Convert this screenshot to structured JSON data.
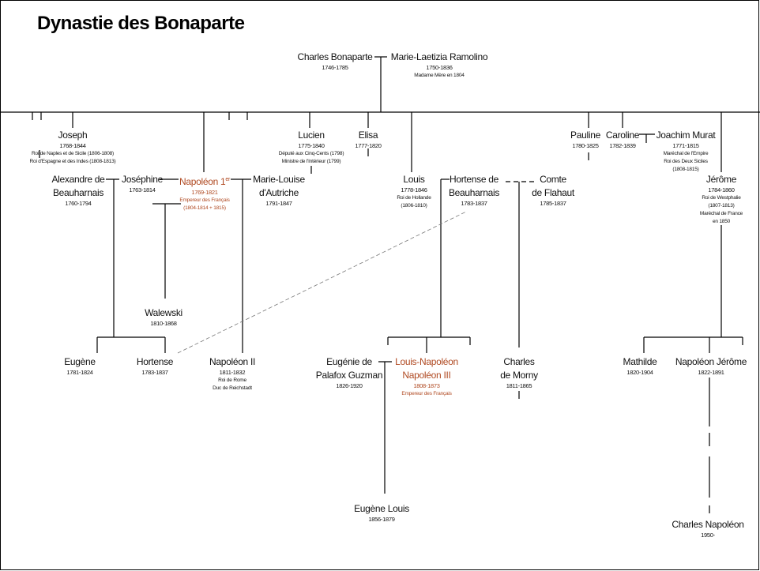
{
  "title": "Dynastie des Bonaparte",
  "highlight_color": "#b04a22",
  "people": {
    "charles": {
      "name": "Charles Bonaparte",
      "dates": "1746-1785"
    },
    "laetizia": {
      "name": "Marie-Laetizia Ramolino",
      "dates": "1750-1836",
      "notes": [
        "Madame Mère en 1804"
      ]
    },
    "joseph": {
      "name": "Joseph",
      "dates": "1768-1844",
      "notes": [
        "Roi de Naples et de Sicile (1806-1808)",
        "Roi d'Espagne et des Indes (1808-1813)"
      ]
    },
    "lucien": {
      "name": "Lucien",
      "dates": "1775-1840",
      "notes": [
        "Député aux Cinq-Cents (1798)",
        "Ministre de l'Intérieur (1799)"
      ]
    },
    "elisa": {
      "name": "Elisa",
      "dates": "1777-1820"
    },
    "pauline": {
      "name": "Pauline",
      "dates": "1780-1825"
    },
    "caroline": {
      "name": "Caroline",
      "dates": "1782-1839"
    },
    "murat": {
      "name": "Joachim Murat",
      "dates": "1771-1815",
      "notes": [
        "Maréchal de l'Empire",
        "Roi des Deux Siciles",
        "(1808-1815)"
      ]
    },
    "alexandre": {
      "name_lines": [
        "Alexandre de",
        "Beauharnais"
      ],
      "dates": "1760-1794"
    },
    "josephine": {
      "name": "Joséphine",
      "dates": "1763-1814"
    },
    "napoleon1": {
      "name": "Napoléon 1",
      "sup": "er",
      "dates": "1769-1821",
      "notes": [
        "Empereur des Français",
        "(1804-1814 + 1815)"
      ]
    },
    "marielouise": {
      "name_lines": [
        "Marie-Louise",
        "d'Autriche"
      ],
      "dates": "1791-1847"
    },
    "louis": {
      "name": "Louis",
      "dates": "1778-1846",
      "notes": [
        "Roi de Hollande",
        "(1806-1810)"
      ]
    },
    "hortense_b": {
      "name_lines": [
        "Hortense de",
        "Beauharnais"
      ],
      "dates": "1783-1837"
    },
    "flahaut": {
      "name_lines": [
        "Comte",
        "de Flahaut"
      ],
      "dates": "1785-1837"
    },
    "jerome": {
      "name": "Jérôme",
      "dates": "1784-1860",
      "notes": [
        "Roi de Westphalie",
        "(1807-1813)",
        "Maréchal de France",
        "en 1850"
      ]
    },
    "walewski": {
      "name": "Walewski",
      "dates": "1810-1868"
    },
    "eugene": {
      "name": "Eugène",
      "dates": "1781-1824"
    },
    "hortense": {
      "name": "Hortense",
      "dates": "1783-1837"
    },
    "napoleon2": {
      "name": "Napoléon II",
      "dates": "1811-1832",
      "notes": [
        "Roi de Rome",
        "Duc de Reichstadt"
      ]
    },
    "eugenie": {
      "name_lines": [
        "Eugénie de",
        "Palafox Guzman"
      ],
      "dates": "1826-1920"
    },
    "napoleon3": {
      "name_lines": [
        "Louis-Napoléon",
        "Napoléon III"
      ],
      "dates": "1808-1873",
      "notes": [
        "Empereur des Français"
      ]
    },
    "morny": {
      "name_lines": [
        "Charles",
        "de Morny"
      ],
      "dates": "1811-1865"
    },
    "mathilde": {
      "name": "Mathilde",
      "dates": "1820-1904"
    },
    "napjerome": {
      "name": "Napoléon Jérôme",
      "dates": "1822-1891"
    },
    "eugenelouis": {
      "name": "Eugène Louis",
      "dates": "1856-1879"
    },
    "charlesnap": {
      "name": "Charles Napoléon",
      "dates": "1950-"
    }
  }
}
